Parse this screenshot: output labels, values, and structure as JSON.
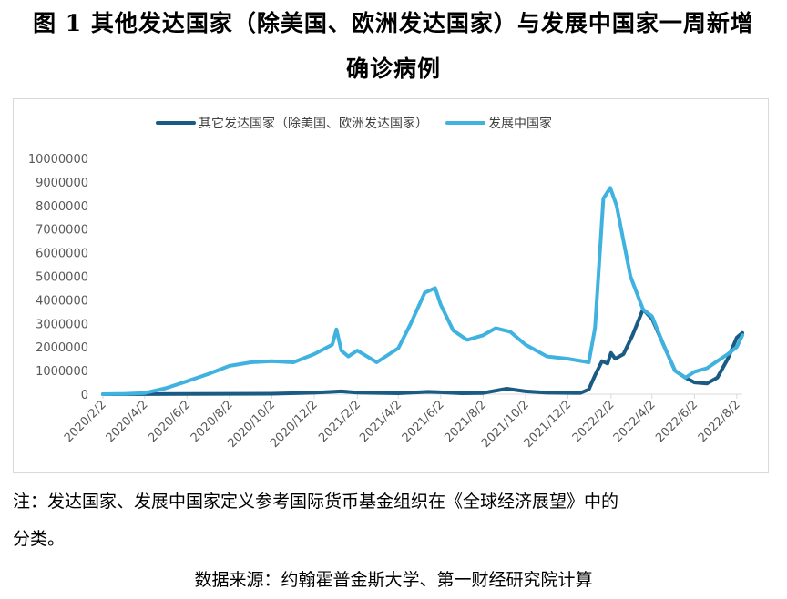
{
  "title": {
    "line1": "图 1  其他发达国家（除美国、欧洲发达国家）与发展中国家一周新增",
    "line2": "确诊病例"
  },
  "note": {
    "line1": "注：发达国家、发展中国家定义参考国际货币基金组织在《全球经济展望》中的",
    "line2": "分类。"
  },
  "source": "数据来源：约翰霍普金斯大学、第一财经研究院计算",
  "colors": {
    "dark": "#1a5b84",
    "light": "#3fb2e0"
  },
  "chart_data": {
    "type": "line",
    "title": "",
    "xlabel": "",
    "ylabel": "",
    "ylim": [
      0,
      10000000
    ],
    "yticks": [
      "0",
      "1000000",
      "2000000",
      "3000000",
      "4000000",
      "5000000",
      "6000000",
      "7000000",
      "8000000",
      "9000000",
      "10000000"
    ],
    "xticks": [
      "2020/2/2",
      "2020/4/2",
      "2020/6/2",
      "2020/8/2",
      "2020/10/2",
      "2020/12/2",
      "2021/2/2",
      "2021/4/2",
      "2021/6/2",
      "2021/8/2",
      "2021/10/2",
      "2021/12/2",
      "2022/2/2",
      "2022/4/2",
      "2022/6/2",
      "2022/8/2"
    ],
    "legend_position": "top",
    "grid": false,
    "series": [
      {
        "name": "其它发达国家（除美国、欧洲发达国家）",
        "color": "#1a5b84",
        "points": [
          [
            "2020/2/2",
            0
          ],
          [
            "2020/4/2",
            5000
          ],
          [
            "2020/6/2",
            10000
          ],
          [
            "2020/8/2",
            15000
          ],
          [
            "2020/10/2",
            20000
          ],
          [
            "2020/12/2",
            60000
          ],
          [
            "2021/1/10",
            120000
          ],
          [
            "2021/2/2",
            70000
          ],
          [
            "2021/4/2",
            40000
          ],
          [
            "2021/5/15",
            100000
          ],
          [
            "2021/6/2",
            80000
          ],
          [
            "2021/7/2",
            40000
          ],
          [
            "2021/8/2",
            50000
          ],
          [
            "2021/9/5",
            230000
          ],
          [
            "2021/10/2",
            120000
          ],
          [
            "2021/11/2",
            60000
          ],
          [
            "2021/12/20",
            50000
          ],
          [
            "2022/1/1",
            200000
          ],
          [
            "2022/1/10",
            800000
          ],
          [
            "2022/1/20",
            1400000
          ],
          [
            "2022/1/28",
            1300000
          ],
          [
            "2022/2/2",
            1750000
          ],
          [
            "2022/2/8",
            1500000
          ],
          [
            "2022/2/20",
            1700000
          ],
          [
            "2022/3/5",
            2500000
          ],
          [
            "2022/3/20",
            3600000
          ],
          [
            "2022/4/2",
            3200000
          ],
          [
            "2022/4/20",
            2000000
          ],
          [
            "2022/5/5",
            1000000
          ],
          [
            "2022/5/20",
            700000
          ],
          [
            "2022/6/2",
            500000
          ],
          [
            "2022/6/20",
            450000
          ],
          [
            "2022/7/5",
            700000
          ],
          [
            "2022/7/20",
            1500000
          ],
          [
            "2022/8/2",
            2400000
          ],
          [
            "2022/8/10",
            2600000
          ]
        ]
      },
      {
        "name": "发展中国家",
        "color": "#3fb2e0",
        "points": [
          [
            "2020/2/2",
            0
          ],
          [
            "2020/3/2",
            10000
          ],
          [
            "2020/4/2",
            50000
          ],
          [
            "2020/5/2",
            250000
          ],
          [
            "2020/6/2",
            550000
          ],
          [
            "2020/7/2",
            850000
          ],
          [
            "2020/8/2",
            1200000
          ],
          [
            "2020/9/2",
            1350000
          ],
          [
            "2020/10/2",
            1400000
          ],
          [
            "2020/11/2",
            1350000
          ],
          [
            "2020/12/2",
            1700000
          ],
          [
            "2020/12/28",
            2100000
          ],
          [
            "2021/1/3",
            2750000
          ],
          [
            "2021/1/10",
            1850000
          ],
          [
            "2021/1/20",
            1600000
          ],
          [
            "2021/2/2",
            1850000
          ],
          [
            "2021/3/2",
            1350000
          ],
          [
            "2021/4/2",
            1950000
          ],
          [
            "2021/4/20",
            3000000
          ],
          [
            "2021/5/10",
            4300000
          ],
          [
            "2021/5/25",
            4500000
          ],
          [
            "2021/6/2",
            3800000
          ],
          [
            "2021/6/20",
            2700000
          ],
          [
            "2021/7/10",
            2300000
          ],
          [
            "2021/8/2",
            2500000
          ],
          [
            "2021/8/20",
            2800000
          ],
          [
            "2021/9/10",
            2650000
          ],
          [
            "2021/10/2",
            2100000
          ],
          [
            "2021/11/2",
            1600000
          ],
          [
            "2021/12/2",
            1500000
          ],
          [
            "2022/1/1",
            1350000
          ],
          [
            "2022/1/10",
            2800000
          ],
          [
            "2022/1/22",
            8300000
          ],
          [
            "2022/2/1",
            8750000
          ],
          [
            "2022/2/10",
            8000000
          ],
          [
            "2022/3/2",
            5000000
          ],
          [
            "2022/3/20",
            3600000
          ],
          [
            "2022/4/2",
            3300000
          ],
          [
            "2022/4/20",
            2000000
          ],
          [
            "2022/5/5",
            1000000
          ],
          [
            "2022/5/20",
            700000
          ],
          [
            "2022/6/2",
            950000
          ],
          [
            "2022/6/20",
            1100000
          ],
          [
            "2022/7/5",
            1400000
          ],
          [
            "2022/7/20",
            1700000
          ],
          [
            "2022/8/2",
            2000000
          ],
          [
            "2022/8/10",
            2500000
          ]
        ]
      }
    ]
  }
}
